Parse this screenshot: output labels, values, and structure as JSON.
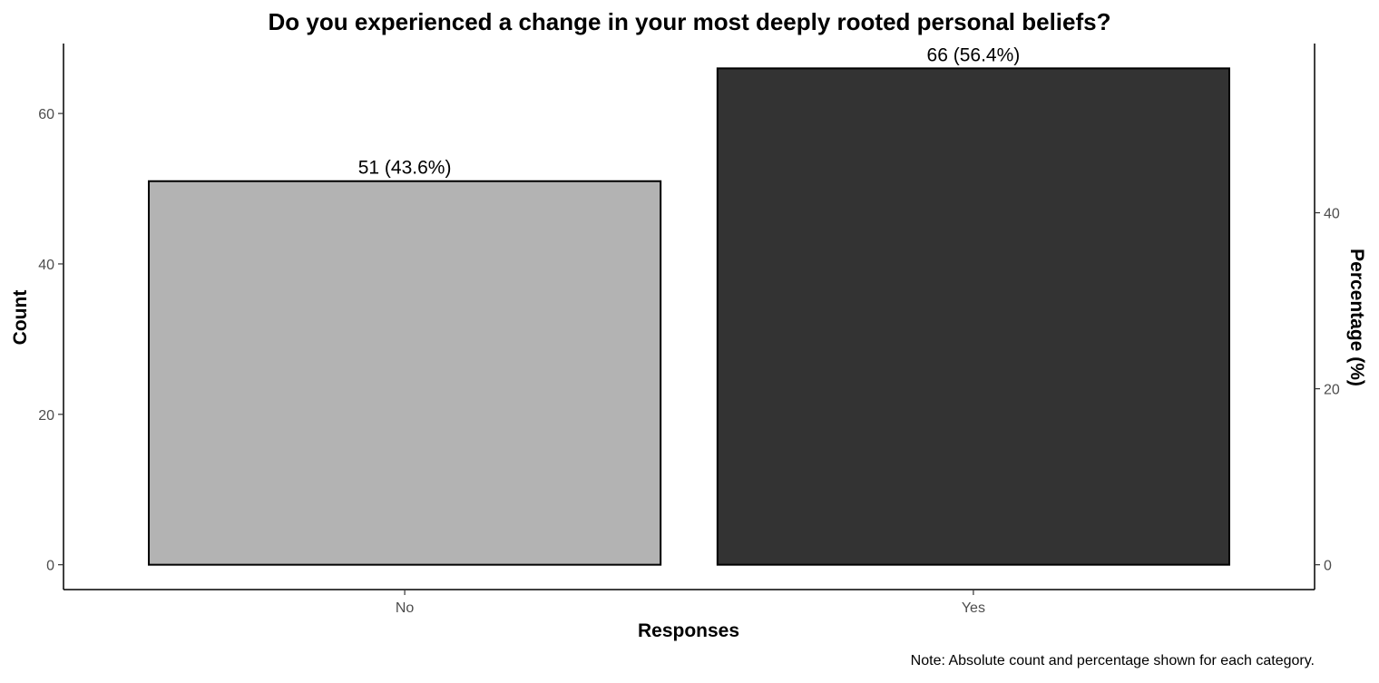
{
  "chart_data": {
    "type": "bar",
    "title": "Do you experienced a change in your most deeply rooted personal beliefs?",
    "xlabel": "Responses",
    "ylabel": "Count",
    "y2label": "Percentage (%)",
    "categories": [
      "No",
      "Yes"
    ],
    "values": [
      51,
      66
    ],
    "percentages": [
      43.6,
      56.4
    ],
    "data_labels": [
      "51 (43.6%)",
      "66 (56.4%)"
    ],
    "colors": [
      "#b3b3b3",
      "#333333"
    ],
    "ylim": [
      -3.3,
      69.3
    ],
    "yticks": [
      0,
      20,
      40,
      60
    ],
    "ytick_labels": [
      "0",
      "20",
      "40",
      "60"
    ],
    "y2ticks": [
      0,
      20,
      40
    ],
    "y2tick_labels": [
      "0",
      "20",
      "40"
    ],
    "grid": false,
    "legend": "none",
    "caption": "Note: Absolute count and percentage shown for each category."
  }
}
